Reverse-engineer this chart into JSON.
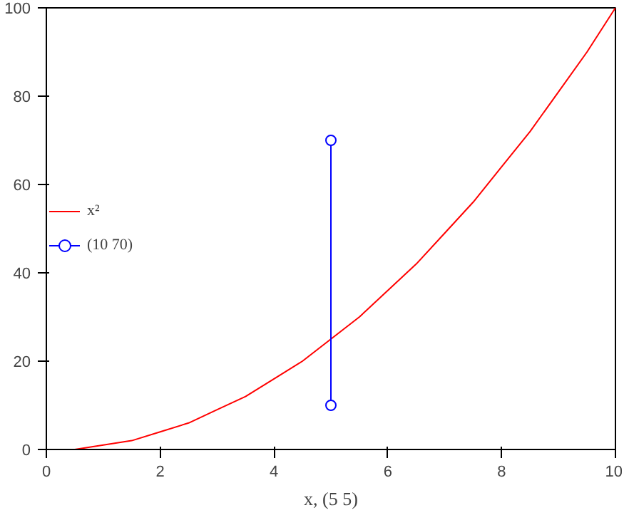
{
  "chart_data": {
    "type": "line",
    "xlabel": "x, (5 5)",
    "xlim": [
      0,
      10
    ],
    "ylim": [
      0,
      100
    ],
    "xticks": [
      0,
      2,
      4,
      6,
      8,
      10
    ],
    "yticks": [
      0,
      20,
      40,
      60,
      80,
      100
    ],
    "grid": false,
    "legend": "center left",
    "line_style": "solid",
    "series": [
      {
        "name": "x²",
        "color": "#ff0000",
        "marker": "none",
        "x": [
          0,
          0.5,
          1,
          1.5,
          2,
          2.5,
          3,
          3.5,
          4,
          4.5,
          5,
          5.5,
          6,
          6.5,
          7,
          7.5,
          8,
          8.5,
          9,
          9.5,
          10
        ],
        "values": [
          0,
          0,
          1,
          2,
          4,
          6,
          9,
          12,
          16,
          20,
          25,
          30,
          36,
          42,
          49,
          56,
          64,
          72,
          81,
          90,
          100
        ]
      },
      {
        "name": "(10 70)",
        "color": "#0000ff",
        "marker": "circle",
        "x": [
          5,
          5
        ],
        "values": [
          10,
          70
        ]
      }
    ]
  }
}
